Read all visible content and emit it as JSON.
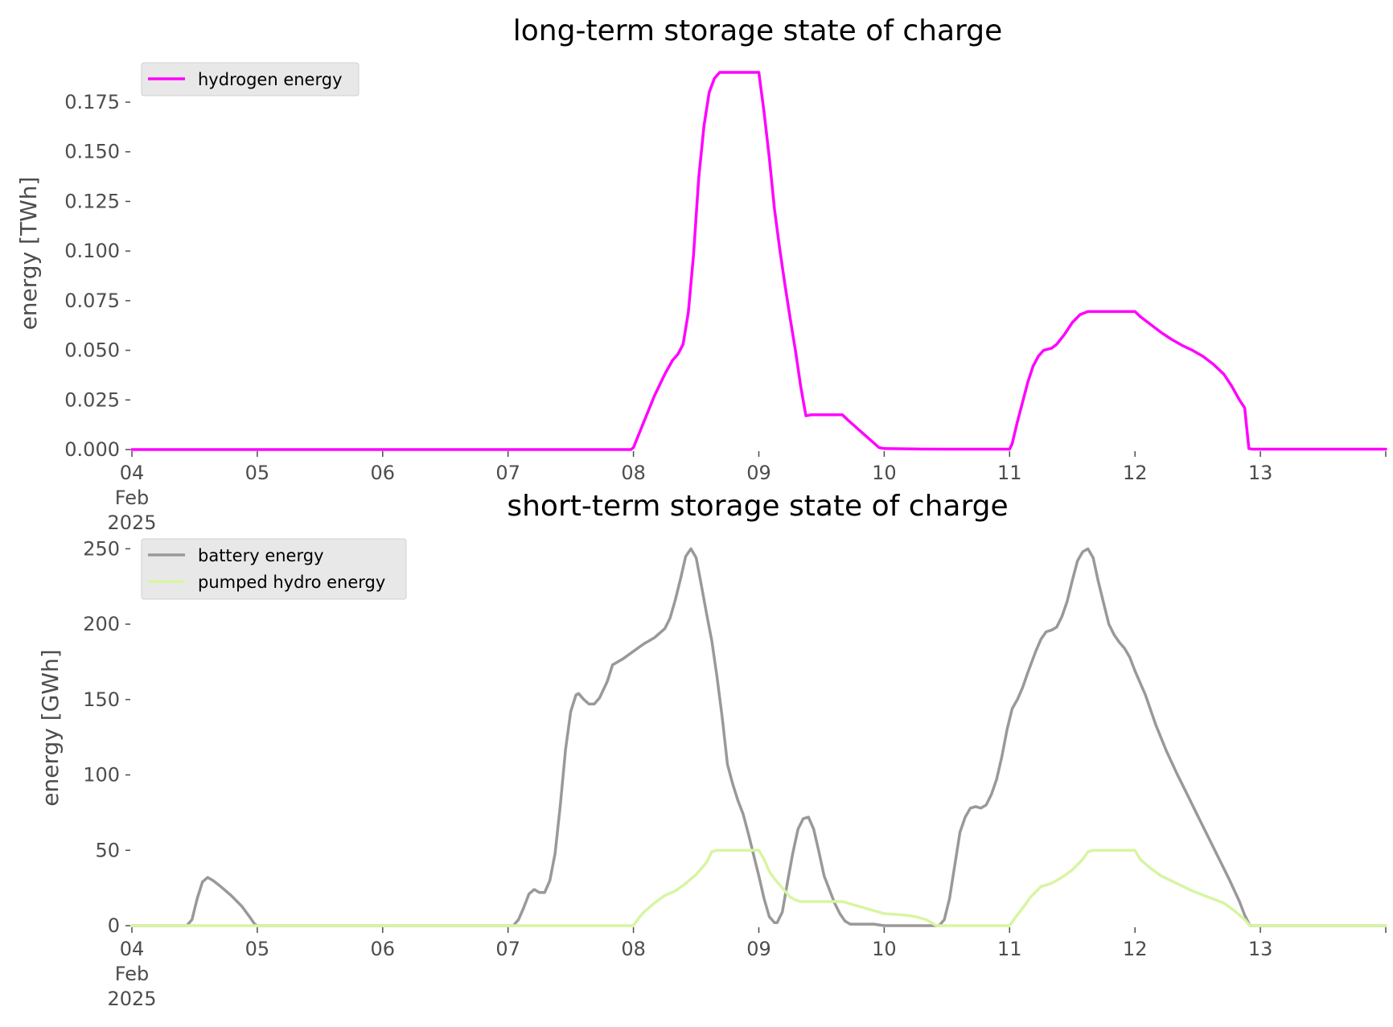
{
  "chart_data": [
    {
      "type": "line",
      "title": "long-term storage state of charge",
      "xlabel": "",
      "ylabel": "energy [TWh]",
      "x_axis": "time (hours since 04 Feb 2025 00:00)",
      "xlim": [
        0,
        240
      ],
      "ylim": [
        0,
        0.19
      ],
      "yticks": [
        0.0,
        0.025,
        0.05,
        0.075,
        0.1,
        0.125,
        0.15,
        0.175
      ],
      "ytick_labels": [
        "0.000",
        "0.025",
        "0.050",
        "0.075",
        "0.100",
        "0.125",
        "0.150",
        "0.175"
      ],
      "xticks": [
        0,
        24,
        48,
        72,
        96,
        120,
        144,
        168,
        192,
        216,
        240
      ],
      "xtick_labels": [
        "04\nFeb\n2025",
        "05",
        "06",
        "07",
        "08",
        "09",
        "10",
        "11",
        "12",
        "13",
        ""
      ],
      "grid": false,
      "legend_position": "top-left",
      "series": [
        {
          "name": "hydrogen energy",
          "color": "#ff00ff",
          "points": [
            [
              0,
              0
            ],
            [
              95.5,
              0
            ],
            [
              96,
              0.001
            ],
            [
              98,
              0.014
            ],
            [
              100,
              0.027
            ],
            [
              102,
              0.038
            ],
            [
              103.5,
              0.045
            ],
            [
              104.5,
              0.048
            ],
            [
              105.5,
              0.053
            ],
            [
              106.5,
              0.069
            ],
            [
              107.5,
              0.098
            ],
            [
              108.5,
              0.137
            ],
            [
              109.5,
              0.163
            ],
            [
              110.5,
              0.18
            ],
            [
              111.5,
              0.187
            ],
            [
              112.5,
              0.19
            ],
            [
              120,
              0.19
            ],
            [
              121,
              0.17
            ],
            [
              122,
              0.147
            ],
            [
              123,
              0.121
            ],
            [
              124,
              0.101
            ],
            [
              125,
              0.083
            ],
            [
              126,
              0.066
            ],
            [
              127,
              0.05
            ],
            [
              128,
              0.032
            ],
            [
              129,
              0.017
            ],
            [
              130,
              0.0175
            ],
            [
              136,
              0.0175
            ],
            [
              137,
              0.015
            ],
            [
              140,
              0.008
            ],
            [
              143,
              0.001
            ],
            [
              144,
              0.0005
            ],
            [
              150,
              0.0003
            ],
            [
              156,
              0.0002
            ],
            [
              168,
              0.0002
            ],
            [
              168.5,
              0.003
            ],
            [
              169.5,
              0.014
            ],
            [
              170.5,
              0.024
            ],
            [
              171.5,
              0.034
            ],
            [
              172.5,
              0.042
            ],
            [
              173.5,
              0.047
            ],
            [
              174.5,
              0.05
            ],
            [
              176,
              0.051
            ],
            [
              177,
              0.053
            ],
            [
              178.5,
              0.058
            ],
            [
              180,
              0.064
            ],
            [
              181.5,
              0.068
            ],
            [
              183,
              0.0695
            ],
            [
              192,
              0.0695
            ],
            [
              193,
              0.067
            ],
            [
              195,
              0.063
            ],
            [
              197,
              0.059
            ],
            [
              199,
              0.0555
            ],
            [
              201,
              0.0525
            ],
            [
              203,
              0.05
            ],
            [
              205,
              0.047
            ],
            [
              207,
              0.043
            ],
            [
              209,
              0.038
            ],
            [
              210.5,
              0.032
            ],
            [
              212,
              0.025
            ],
            [
              213,
              0.021
            ],
            [
              213.8,
              0.0005
            ],
            [
              214.5,
              0.0002
            ],
            [
              240,
              0.0002
            ]
          ]
        }
      ]
    },
    {
      "type": "line",
      "title": "short-term storage state of charge",
      "xlabel": "",
      "ylabel": "energy [GWh]",
      "x_axis": "time (hours since 04 Feb 2025 00:00)",
      "xlim": [
        0,
        240
      ],
      "ylim": [
        0,
        255
      ],
      "yticks": [
        0,
        50,
        100,
        150,
        200,
        250
      ],
      "ytick_labels": [
        "0",
        "50",
        "100",
        "150",
        "200",
        "250"
      ],
      "xticks": [
        0,
        24,
        48,
        72,
        96,
        120,
        144,
        168,
        192,
        216,
        240
      ],
      "xtick_labels": [
        "04\nFeb\n2025",
        "05",
        "06",
        "07",
        "08",
        "09",
        "10",
        "11",
        "12",
        "13",
        ""
      ],
      "grid": false,
      "legend_position": "top-left",
      "series": [
        {
          "name": "battery energy",
          "color": "#999999",
          "points": [
            [
              0,
              0
            ],
            [
              10.5,
              0
            ],
            [
              11.5,
              4
            ],
            [
              12.5,
              18
            ],
            [
              13.5,
              29
            ],
            [
              14.5,
              32
            ],
            [
              15.5,
              30
            ],
            [
              17,
              26
            ],
            [
              19,
              20
            ],
            [
              21,
              13
            ],
            [
              22.5,
              6
            ],
            [
              23.5,
              1
            ],
            [
              24,
              0
            ],
            [
              73,
              0
            ],
            [
              74,
              4
            ],
            [
              75,
              12
            ],
            [
              76,
              21
            ],
            [
              77,
              24
            ],
            [
              78,
              22
            ],
            [
              79,
              22
            ],
            [
              80,
              30
            ],
            [
              81,
              48
            ],
            [
              82,
              80
            ],
            [
              83,
              117
            ],
            [
              84,
              142
            ],
            [
              85,
              153
            ],
            [
              85.5,
              154
            ],
            [
              86.5,
              150
            ],
            [
              87.5,
              147
            ],
            [
              88.5,
              147
            ],
            [
              89.5,
              151
            ],
            [
              91,
              162
            ],
            [
              92,
              173
            ],
            [
              94,
              177
            ],
            [
              96,
              182
            ],
            [
              98,
              187
            ],
            [
              100,
              191
            ],
            [
              102,
              197
            ],
            [
              103,
              204
            ],
            [
              104,
              216
            ],
            [
              105,
              230
            ],
            [
              106,
              245
            ],
            [
              107,
              250
            ],
            [
              108,
              244
            ],
            [
              109,
              226
            ],
            [
              110,
              207
            ],
            [
              111,
              189
            ],
            [
              112,
              165
            ],
            [
              113,
              138
            ],
            [
              114,
              107
            ],
            [
              115,
              94
            ],
            [
              116,
              83
            ],
            [
              117,
              74
            ],
            [
              118,
              61
            ],
            [
              119,
              47
            ],
            [
              120,
              33
            ],
            [
              121,
              18
            ],
            [
              122,
              6
            ],
            [
              123,
              2
            ],
            [
              123.5,
              2
            ],
            [
              124.5,
              9
            ],
            [
              125.5,
              29
            ],
            [
              126.5,
              48
            ],
            [
              127.5,
              64
            ],
            [
              128.5,
              71
            ],
            [
              129.5,
              72
            ],
            [
              130.5,
              64
            ],
            [
              131.5,
              49
            ],
            [
              132.5,
              33
            ],
            [
              133.5,
              24
            ],
            [
              134.5,
              15
            ],
            [
              135.5,
              8
            ],
            [
              136.5,
              3
            ],
            [
              137.5,
              1
            ],
            [
              139,
              1
            ],
            [
              142,
              1
            ],
            [
              144,
              0
            ],
            [
              154.5,
              0
            ],
            [
              155.5,
              4
            ],
            [
              156.5,
              18
            ],
            [
              157.5,
              40
            ],
            [
              158.5,
              62
            ],
            [
              159.5,
              72
            ],
            [
              160.5,
              78
            ],
            [
              161.5,
              79
            ],
            [
              162.5,
              78
            ],
            [
              163.5,
              80
            ],
            [
              164.5,
              87
            ],
            [
              165.5,
              97
            ],
            [
              166.5,
              112
            ],
            [
              167.5,
              130
            ],
            [
              168.5,
              144
            ],
            [
              169.5,
              150
            ],
            [
              170.5,
              158
            ],
            [
              171.5,
              168
            ],
            [
              173,
              182
            ],
            [
              174,
              190
            ],
            [
              175,
              195
            ],
            [
              176,
              196
            ],
            [
              177,
              198
            ],
            [
              178,
              205
            ],
            [
              179,
              215
            ],
            [
              180,
              229
            ],
            [
              181,
              242
            ],
            [
              182,
              248
            ],
            [
              183,
              250
            ],
            [
              184,
              244
            ],
            [
              185,
              228
            ],
            [
              186,
              214
            ],
            [
              187,
              200
            ],
            [
              188,
              193
            ],
            [
              189,
              188
            ],
            [
              190,
              184
            ],
            [
              191,
              178
            ],
            [
              192,
              169
            ],
            [
              194,
              153
            ],
            [
              196,
              133
            ],
            [
              198,
              116
            ],
            [
              200,
              101
            ],
            [
              202,
              87
            ],
            [
              204,
              73
            ],
            [
              206,
              59
            ],
            [
              208,
              45
            ],
            [
              210,
              31
            ],
            [
              212,
              16
            ],
            [
              213,
              7
            ],
            [
              214,
              0
            ],
            [
              240,
              0
            ]
          ]
        },
        {
          "name": "pumped hydro energy",
          "color": "#d8f5a2",
          "points": [
            [
              0,
              0
            ],
            [
              96,
              0
            ],
            [
              97,
              5
            ],
            [
              98,
              9
            ],
            [
              100,
              15
            ],
            [
              102,
              20
            ],
            [
              104,
              23
            ],
            [
              106,
              28
            ],
            [
              108,
              34
            ],
            [
              110,
              42
            ],
            [
              111,
              49
            ],
            [
              112,
              50
            ],
            [
              120,
              50
            ],
            [
              121,
              44
            ],
            [
              122,
              36
            ],
            [
              123,
              31
            ],
            [
              124,
              27
            ],
            [
              125,
              23
            ],
            [
              126,
              19
            ],
            [
              127,
              17
            ],
            [
              128,
              16
            ],
            [
              136,
              16
            ],
            [
              138,
              14
            ],
            [
              140,
              12
            ],
            [
              142,
              10
            ],
            [
              144,
              8
            ],
            [
              148,
              7
            ],
            [
              150,
              6
            ],
            [
              152,
              4
            ],
            [
              153,
              2
            ],
            [
              154,
              0
            ],
            [
              168,
              0
            ],
            [
              169,
              5
            ],
            [
              171,
              14
            ],
            [
              172,
              19
            ],
            [
              174,
              26
            ],
            [
              176,
              28
            ],
            [
              178,
              32
            ],
            [
              180,
              37
            ],
            [
              182,
              44
            ],
            [
              183,
              49
            ],
            [
              184,
              50
            ],
            [
              192,
              50
            ],
            [
              193,
              44
            ],
            [
              195,
              38
            ],
            [
              197,
              33
            ],
            [
              200,
              28
            ],
            [
              203,
              23
            ],
            [
              206,
              19
            ],
            [
              209,
              15
            ],
            [
              211,
              10
            ],
            [
              213,
              4
            ],
            [
              214,
              0
            ],
            [
              240,
              0
            ]
          ]
        }
      ]
    }
  ]
}
